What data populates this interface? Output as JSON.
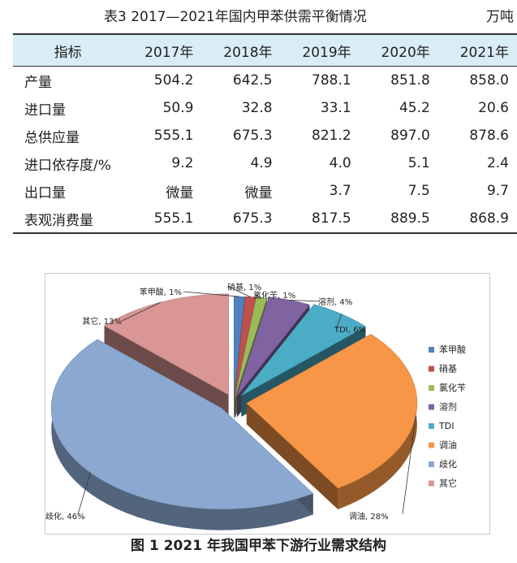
{
  "table": {
    "caption": "表3  2017—2021年国内甲苯供需平衡情况",
    "unit": "万吨",
    "headers": [
      "指标",
      "2017年",
      "2018年",
      "2019年",
      "2020年",
      "2021年"
    ],
    "rows": [
      [
        "产量",
        "504.2",
        "642.5",
        "788.1",
        "851.8",
        "858.0"
      ],
      [
        "进口量",
        "50.9",
        "32.8",
        "33.1",
        "45.2",
        "20.6"
      ],
      [
        "总供应量",
        "555.1",
        "675.3",
        "821.2",
        "897.0",
        "878.6"
      ],
      [
        "进口依存度/%",
        "9.2",
        "4.9",
        "4.0",
        "5.1",
        "2.4"
      ],
      [
        "出口量",
        "微量",
        "微量",
        "3.7",
        "7.5",
        "9.7"
      ],
      [
        "表观消费量",
        "555.1",
        "675.3",
        "817.5",
        "889.5",
        "868.9"
      ]
    ]
  },
  "figure": {
    "caption": "图 1  2021 年我国甲苯下游行业需求结构"
  },
  "chart_data": {
    "type": "pie",
    "title": "",
    "labels": [
      "苯甲酸",
      "硝基",
      "氯化苄",
      "溶剂",
      "TDI",
      "调油",
      "歧化",
      "其它"
    ],
    "values": [
      1,
      1,
      1,
      4,
      6,
      28,
      46,
      13
    ],
    "value_labels": [
      "苯甲酸, 1%",
      "硝基, 1%",
      "氯化苄, 1%",
      "溶剂, 4%",
      "TDI, 6%",
      "调油, 28%",
      "歧化, 46%",
      "其它, 13%"
    ],
    "colors": [
      "#4f81bd",
      "#c0504d",
      "#9bbb59",
      "#8064a2",
      "#4bacc6",
      "#f79646",
      "#8ba8d1",
      "#d99694"
    ],
    "style": "3d-exploded",
    "legend": "right"
  }
}
